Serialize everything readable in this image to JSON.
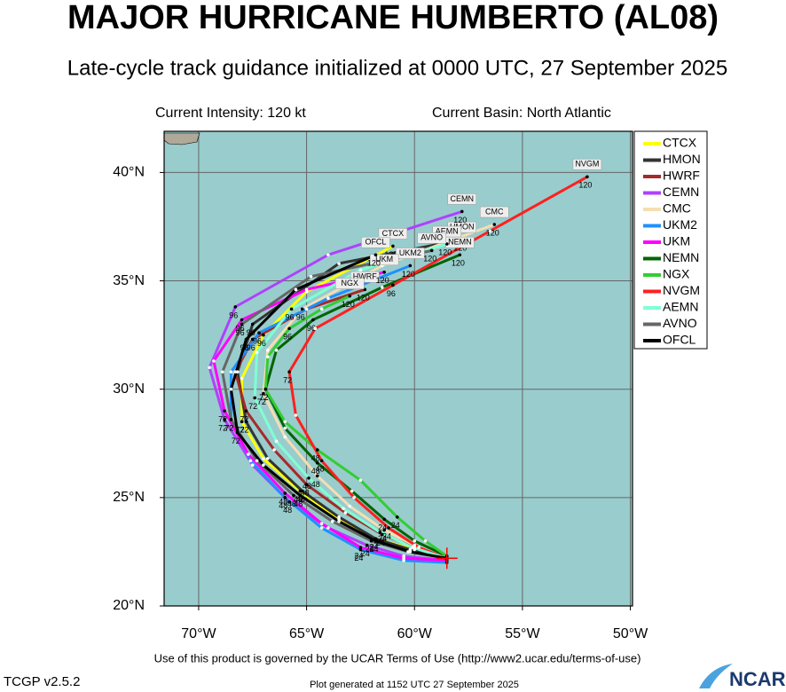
{
  "chart_data": {
    "type": "track",
    "title": "MAJOR HURRICANE HUMBERTO (AL08)",
    "subtitle": "Late-cycle track guidance initialized at 0000 UTC, 27 September 2025",
    "intensity": "Current Intensity: 120 kt",
    "basin": "Current Basin: North Atlantic",
    "terms": "Use of this product is governed by the UCAR Terms of Use (http://www2.ucar.edu/terms-of-use)",
    "version": "TCGP v2.5.2",
    "generated": "Plot generated at 1152 UTC  27 September 2025",
    "logo": "NCAR",
    "xlim": [
      -71.6,
      -49.9
    ],
    "ylim": [
      20,
      41.9
    ],
    "xticks": [
      {
        "value": -70,
        "label": "70°W"
      },
      {
        "value": -65,
        "label": "65°W"
      },
      {
        "value": -60,
        "label": "60°W"
      },
      {
        "value": -55,
        "label": "55°W"
      },
      {
        "value": -50,
        "label": "50°W"
      }
    ],
    "yticks": [
      {
        "value": 20,
        "label": "20°N"
      },
      {
        "value": 25,
        "label": "25°N"
      },
      {
        "value": 30,
        "label": "30°N"
      },
      {
        "value": 35,
        "label": "35°N"
      },
      {
        "value": 40,
        "label": "40°N"
      }
    ],
    "grid": true,
    "legend": "right",
    "hours": [
      0,
      12,
      24,
      36,
      48,
      60,
      72,
      84,
      96,
      108,
      120
    ],
    "hour_labels": [
      24,
      48,
      72,
      96,
      120
    ],
    "series": [
      {
        "name": "CTCX",
        "color": "#ffff00",
        "x": [
          -58.5,
          -60.0,
          -61.8,
          -63.5,
          -65.3,
          -67.0,
          -68.0,
          -68.0,
          -67.0,
          -65.0,
          -61.0
        ],
        "values": [
          22.2,
          22.6,
          23.1,
          24.0,
          25.3,
          26.8,
          28.5,
          30.5,
          32.5,
          34.5,
          36.6
        ]
      },
      {
        "name": "HMON",
        "color": "#333333",
        "x": [
          -58.5,
          -60.2,
          -61.8,
          -63.5,
          -65.2,
          -66.8,
          -67.8,
          -68.2,
          -67.5,
          -63.5,
          -57.8
        ],
        "values": [
          22.2,
          22.6,
          23.1,
          24.1,
          25.3,
          26.8,
          28.5,
          30.8,
          33.0,
          35.8,
          36.9
        ]
      },
      {
        "name": "HWRF",
        "color": "#a52a2a",
        "x": [
          -58.5,
          -60.0,
          -61.5,
          -63.2,
          -65.0,
          -66.5,
          -67.8,
          -68.3,
          -67.5,
          -65.0,
          -62.3
        ],
        "values": [
          22.2,
          22.7,
          23.3,
          24.3,
          25.6,
          27.2,
          29.0,
          30.8,
          32.3,
          33.7,
          34.6
        ]
      },
      {
        "name": "CEMN",
        "color": "#b040ff",
        "x": [
          -58.5,
          -60.5,
          -62.2,
          -64.0,
          -65.8,
          -67.5,
          -68.8,
          -69.5,
          -68.3,
          -64.0,
          -57.8
        ],
        "values": [
          22.1,
          22.3,
          22.8,
          23.6,
          24.8,
          26.5,
          28.6,
          31.0,
          33.8,
          36.2,
          38.2
        ]
      },
      {
        "name": "CMC",
        "color": "#f5deb3",
        "x": [
          -58.5,
          -60.0,
          -61.4,
          -63.0,
          -64.5,
          -66.0,
          -67.0,
          -66.8,
          -65.2,
          -61.5,
          -56.3
        ],
        "values": [
          22.2,
          22.8,
          23.5,
          24.6,
          26.0,
          27.8,
          29.8,
          31.8,
          33.7,
          35.7,
          37.6
        ]
      },
      {
        "name": "UKM2",
        "color": "#1e90ff",
        "x": [
          -58.5,
          -60.5,
          -62.5,
          -64.3,
          -66.0,
          -67.6,
          -68.5,
          -68.5,
          -67.2,
          -64.0,
          -60.2
        ],
        "values": [
          22.0,
          22.1,
          22.6,
          23.6,
          25.0,
          26.7,
          28.6,
          30.8,
          32.6,
          34.2,
          35.7
        ]
      },
      {
        "name": "UKM",
        "color": "#ff00ff",
        "x": [
          -58.5,
          -60.5,
          -62.5,
          -64.3,
          -66.0,
          -67.7,
          -68.8,
          -69.3,
          -68.0,
          -65.0,
          -61.4
        ],
        "values": [
          22.1,
          22.2,
          22.7,
          23.8,
          25.2,
          27.0,
          29.0,
          31.3,
          33.2,
          34.6,
          35.4
        ]
      },
      {
        "name": "NEMN",
        "color": "#006400",
        "x": [
          -58.5,
          -60.0,
          -61.4,
          -62.9,
          -64.5,
          -66.0,
          -66.9,
          -66.4,
          -64.7,
          -61.5,
          -57.9
        ],
        "values": [
          22.3,
          23.0,
          24.0,
          25.3,
          26.6,
          28.2,
          30.0,
          31.8,
          33.2,
          34.7,
          36.2
        ]
      },
      {
        "name": "NGX",
        "color": "#32cd32",
        "x": [
          -58.5,
          -59.5,
          -60.8,
          -62.5,
          -64.5,
          -66.0,
          -66.9,
          -66.8,
          -65.8,
          -64.3,
          -63.0
        ],
        "values": [
          22.3,
          23.0,
          24.1,
          25.8,
          27.2,
          28.5,
          30.0,
          31.5,
          32.8,
          33.7,
          34.3
        ]
      },
      {
        "name": "NVGM",
        "color": "#ff2020",
        "x": [
          -58.5,
          -59.8,
          -61.2,
          -62.8,
          -64.3,
          -65.5,
          -65.8,
          -64.6,
          -61.0,
          -56.5,
          -52.0
        ],
        "values": [
          22.2,
          22.7,
          23.6,
          25.0,
          26.7,
          28.8,
          30.8,
          32.8,
          34.8,
          37.3,
          39.8
        ]
      },
      {
        "name": "AEMN",
        "color": "#7fffd4",
        "x": [
          -58.5,
          -60.1,
          -61.6,
          -63.3,
          -64.9,
          -66.4,
          -67.4,
          -67.3,
          -65.7,
          -62.5,
          -58.5
        ],
        "values": [
          22.2,
          22.7,
          23.4,
          24.5,
          25.9,
          27.6,
          29.6,
          31.7,
          33.7,
          35.5,
          36.7
        ]
      },
      {
        "name": "AVNO",
        "color": "#666666",
        "x": [
          -58.5,
          -60.3,
          -62.0,
          -63.8,
          -65.6,
          -67.3,
          -68.5,
          -68.9,
          -68.0,
          -64.8,
          -59.2
        ],
        "values": [
          22.2,
          22.5,
          23.0,
          23.9,
          25.1,
          26.7,
          28.6,
          30.8,
          33.0,
          35.2,
          36.4
        ]
      },
      {
        "name": "OFCL",
        "color": "#000000",
        "x": [
          -58.5,
          -60.2,
          -61.8,
          -63.5,
          -65.3,
          -67.0,
          -68.2,
          -68.5,
          -67.8,
          -65.5,
          -61.8
        ],
        "values": [
          22.2,
          22.5,
          23.0,
          23.9,
          25.1,
          26.5,
          28.0,
          30.0,
          32.3,
          34.6,
          36.2
        ]
      }
    ]
  }
}
